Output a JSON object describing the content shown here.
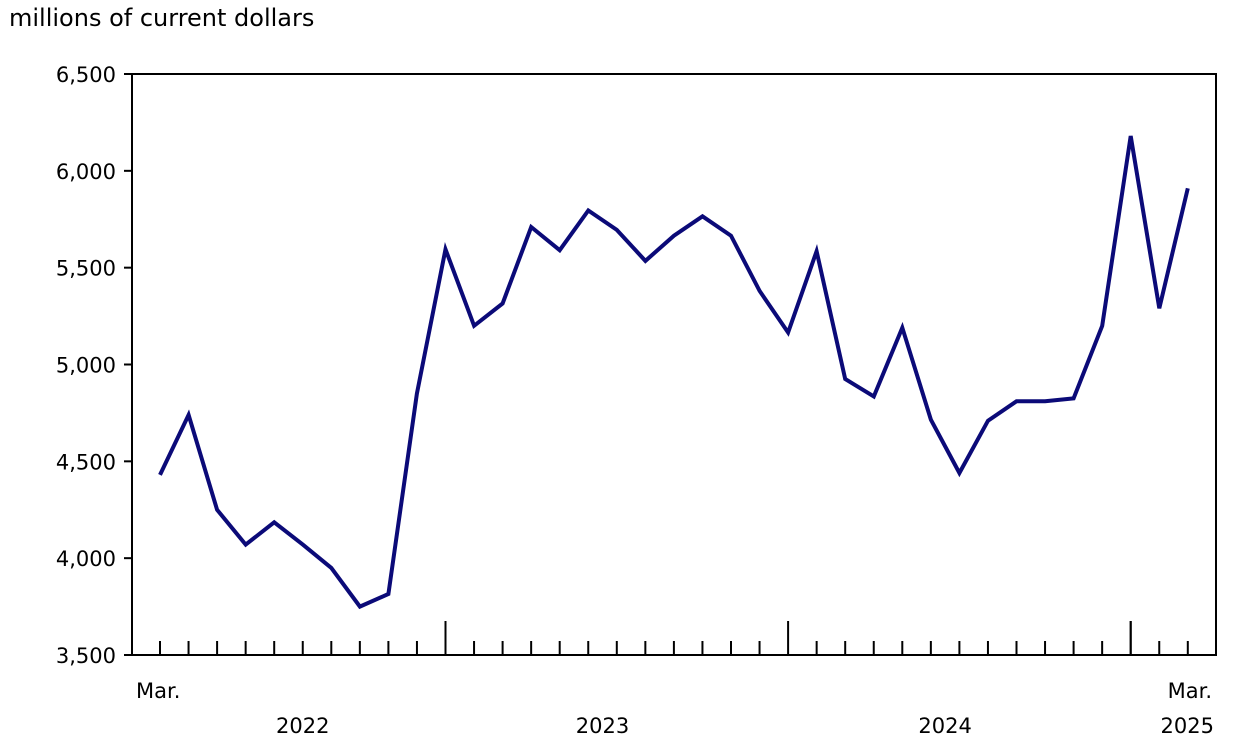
{
  "chart_data": {
    "type": "line",
    "ylabel": "millions of current dollars",
    "ylim": [
      3500,
      6500
    ],
    "yticks": [
      "3,500",
      "4,000",
      "4,500",
      "5,000",
      "5,500",
      "6,000",
      "6,500"
    ],
    "ytick_values": [
      3500,
      4000,
      4500,
      5000,
      5500,
      6000,
      6500
    ],
    "x_start_label": {
      "month": "Mar."
    },
    "x_end_label": {
      "month": "Mar.",
      "year": "2025"
    },
    "year_labels": [
      "2022",
      "2023",
      "2024"
    ],
    "x": [
      "2022-03",
      "2022-04",
      "2022-05",
      "2022-06",
      "2022-07",
      "2022-08",
      "2022-09",
      "2022-10",
      "2022-11",
      "2022-12",
      "2023-01",
      "2023-02",
      "2023-03",
      "2023-04",
      "2023-05",
      "2023-06",
      "2023-07",
      "2023-08",
      "2023-09",
      "2023-10",
      "2023-11",
      "2023-12",
      "2024-01",
      "2024-02",
      "2024-03",
      "2024-04",
      "2024-05",
      "2024-06",
      "2024-07",
      "2024-08",
      "2024-09",
      "2024-10",
      "2024-11",
      "2024-12",
      "2025-01",
      "2025-02",
      "2025-03"
    ],
    "series": [
      {
        "color": "#0b0a78",
        "values": [
          4430,
          4740,
          4250,
          4070,
          4185,
          4070,
          3950,
          3750,
          3815,
          4850,
          5595,
          5200,
          5315,
          5710,
          5590,
          5795,
          5695,
          5535,
          5665,
          5765,
          5665,
          5380,
          5165,
          5585,
          4925,
          4835,
          5190,
          4715,
          4440,
          4710,
          4810,
          4810,
          4825,
          5200,
          6180,
          5290,
          5910
        ]
      }
    ],
    "grid": false,
    "legend": "none"
  }
}
